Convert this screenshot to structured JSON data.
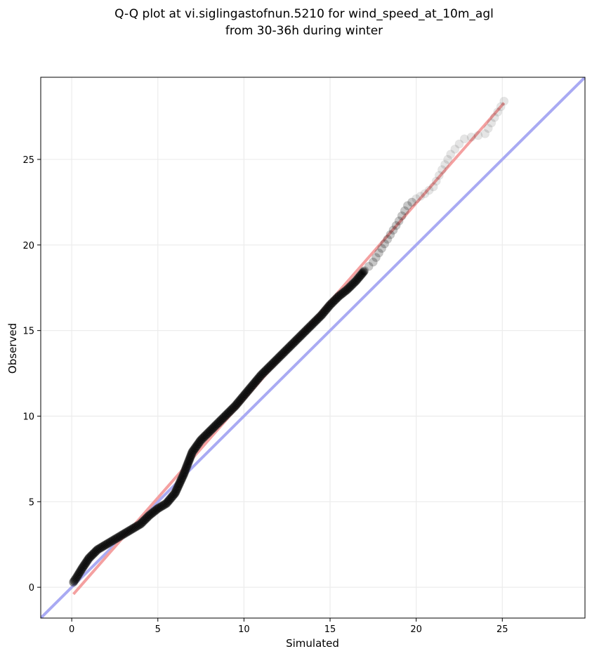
{
  "chart_data": {
    "type": "scatter",
    "title_line1": "Q-Q plot at vi.siglingastofnun.5210 for wind_speed_at_10m_agl",
    "title_line2": "from 30-36h during winter",
    "xlabel": "Simulated",
    "ylabel": "Observed",
    "xlim": [
      -1.8,
      29.8
    ],
    "ylim": [
      -1.8,
      29.8
    ],
    "x_ticks": [
      0,
      5,
      10,
      15,
      20,
      25
    ],
    "y_ticks": [
      0,
      5,
      10,
      15,
      20,
      25
    ],
    "grid": true,
    "qq_points": [
      [
        0.1,
        0.3
      ],
      [
        0.3,
        0.6
      ],
      [
        0.6,
        1.1
      ],
      [
        1.0,
        1.7
      ],
      [
        1.5,
        2.2
      ],
      [
        2.0,
        2.5
      ],
      [
        2.5,
        2.8
      ],
      [
        3.0,
        3.1
      ],
      [
        3.5,
        3.4
      ],
      [
        4.0,
        3.7
      ],
      [
        4.5,
        4.2
      ],
      [
        5.0,
        4.6
      ],
      [
        5.5,
        4.9
      ],
      [
        6.0,
        5.5
      ],
      [
        6.5,
        6.6
      ],
      [
        7.0,
        7.9
      ],
      [
        7.5,
        8.6
      ],
      [
        8.0,
        9.1
      ],
      [
        8.5,
        9.6
      ],
      [
        9.0,
        10.1
      ],
      [
        9.5,
        10.6
      ],
      [
        10.0,
        11.2
      ],
      [
        10.5,
        11.8
      ],
      [
        11.0,
        12.4
      ],
      [
        11.5,
        12.9
      ],
      [
        12.0,
        13.4
      ],
      [
        12.5,
        13.9
      ],
      [
        13.0,
        14.4
      ],
      [
        13.5,
        14.9
      ],
      [
        14.0,
        15.4
      ],
      [
        14.5,
        15.9
      ],
      [
        15.0,
        16.5
      ],
      [
        15.5,
        17.0
      ],
      [
        16.0,
        17.4
      ],
      [
        16.5,
        17.9
      ],
      [
        17.0,
        18.5
      ],
      [
        17.5,
        19.0
      ],
      [
        18.0,
        19.8
      ],
      [
        18.5,
        20.6
      ],
      [
        19.0,
        21.4
      ],
      [
        19.5,
        22.3
      ],
      [
        20.0,
        22.7
      ],
      [
        20.5,
        23.0
      ],
      [
        21.0,
        23.4
      ],
      [
        21.5,
        24.4
      ],
      [
        22.0,
        25.3
      ],
      [
        22.5,
        25.9
      ],
      [
        22.8,
        26.2
      ],
      [
        24.0,
        26.5
      ],
      [
        25.1,
        28.4
      ]
    ],
    "regression_line": {
      "x": [
        0.1,
        25.1
      ],
      "y": [
        -0.4,
        28.3
      ]
    },
    "identity_line": {
      "x": [
        -1.8,
        29.8
      ],
      "y": [
        -1.8,
        29.8
      ]
    },
    "colors": {
      "points": "#000000",
      "regression": "#f4a0a0",
      "identity": "#a9aaf3",
      "grid": "#ececec"
    }
  }
}
